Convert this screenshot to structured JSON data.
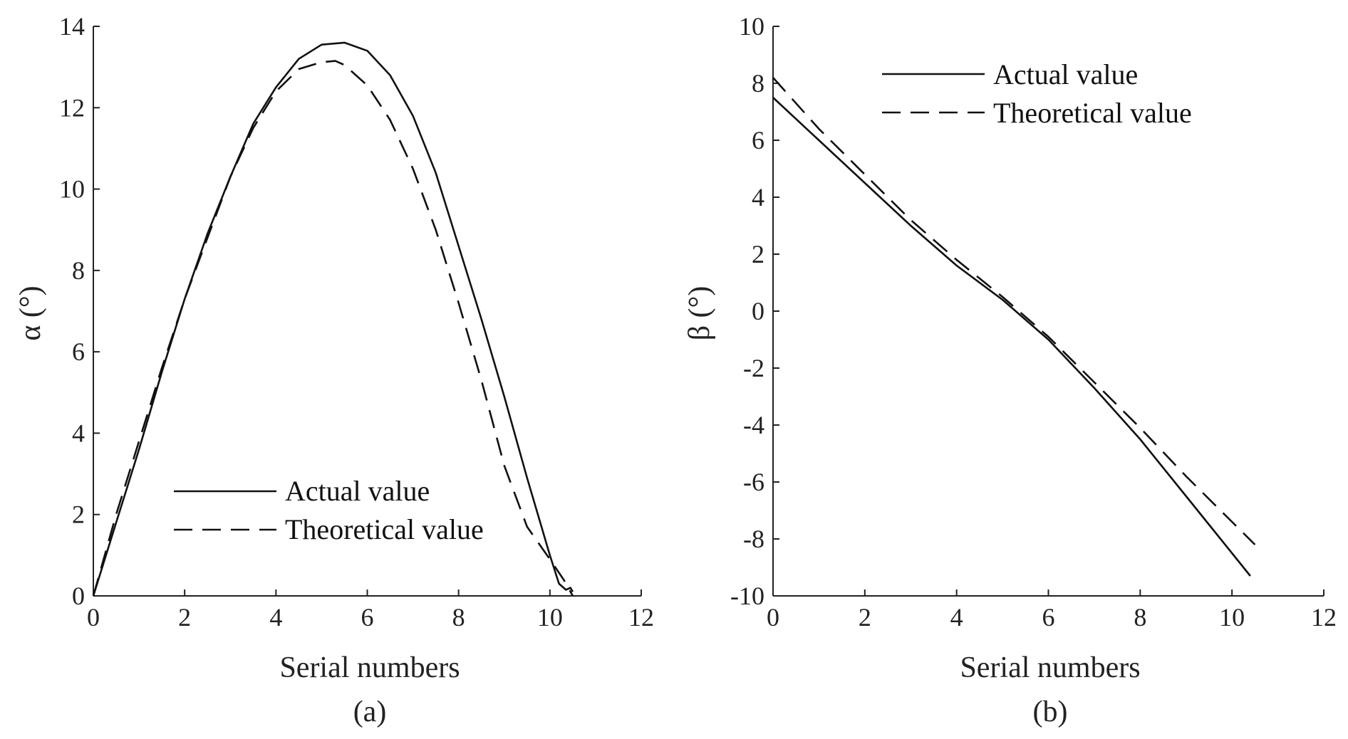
{
  "chart_data": [
    {
      "type": "line",
      "caption": "(a)",
      "xlabel": "Serial numbers",
      "ylabel": "α (°)",
      "xlim": [
        0,
        12
      ],
      "ylim": [
        0,
        14
      ],
      "xticks": [
        "0",
        "2",
        "4",
        "6",
        "8",
        "10",
        "12"
      ],
      "yticks": [
        "0",
        "2",
        "4",
        "6",
        "8",
        "10",
        "12",
        "14"
      ],
      "grid": false,
      "legend_position": "bottom-center",
      "series": [
        {
          "name": "Actual value",
          "style": "solid",
          "x": [
            0,
            0.5,
            1.0,
            1.5,
            2.0,
            2.5,
            3.0,
            3.5,
            4.0,
            4.5,
            5.0,
            5.5,
            6.0,
            6.5,
            7.0,
            7.5,
            8.0,
            8.5,
            9.0,
            9.5,
            10.0,
            10.2,
            10.35,
            10.45,
            10.5
          ],
          "y": [
            0,
            1.8,
            3.6,
            5.5,
            7.3,
            8.9,
            10.3,
            11.6,
            12.5,
            13.2,
            13.55,
            13.6,
            13.4,
            12.8,
            11.8,
            10.4,
            8.6,
            6.8,
            4.9,
            2.9,
            1.0,
            0.3,
            0.15,
            0.2,
            0.1
          ]
        },
        {
          "name": "Theoretical value",
          "style": "dashed",
          "x": [
            0,
            0.5,
            1.0,
            1.5,
            2.0,
            2.5,
            3.0,
            3.5,
            4.0,
            4.5,
            5.0,
            5.3,
            5.5,
            6.0,
            6.5,
            7.0,
            7.5,
            8.0,
            8.5,
            9.0,
            9.5,
            10.0,
            10.3,
            10.5
          ],
          "y": [
            0,
            2.0,
            3.8,
            5.6,
            7.3,
            8.8,
            10.3,
            11.5,
            12.4,
            12.95,
            13.12,
            13.15,
            13.05,
            12.55,
            11.7,
            10.5,
            9.0,
            7.2,
            5.3,
            3.2,
            1.7,
            0.9,
            0.4,
            0
          ]
        }
      ]
    },
    {
      "type": "line",
      "caption": "(b)",
      "xlabel": "Serial numbers",
      "ylabel": "β (°)",
      "xlim": [
        0,
        12
      ],
      "ylim": [
        -10,
        10
      ],
      "xticks": [
        "0",
        "2",
        "4",
        "6",
        "8",
        "10",
        "12"
      ],
      "yticks": [
        "-10",
        "-8",
        "-6",
        "-4",
        "-2",
        "0",
        "2",
        "4",
        "6",
        "8",
        "10"
      ],
      "grid": false,
      "legend_position": "top-center",
      "series": [
        {
          "name": "Actual value",
          "style": "solid",
          "x": [
            0,
            1,
            2,
            3,
            4,
            5,
            6,
            7,
            8,
            9,
            9.5,
            10,
            10.4
          ],
          "y": [
            7.5,
            6.0,
            4.5,
            3.0,
            1.6,
            0.4,
            -1.0,
            -2.7,
            -4.5,
            -6.5,
            -7.5,
            -8.5,
            -9.3
          ],
          "x_0": 0
        },
        {
          "name": "Theoretical value",
          "style": "dashed",
          "x": [
            0,
            1,
            2,
            3,
            4,
            5,
            6,
            7,
            8,
            9,
            10,
            10.5
          ],
          "y": [
            8.2,
            6.4,
            4.8,
            3.2,
            1.8,
            0.5,
            -0.9,
            -2.5,
            -4.1,
            -5.8,
            -7.4,
            -8.2
          ]
        }
      ]
    }
  ]
}
